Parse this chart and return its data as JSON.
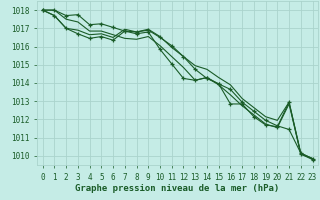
{
  "title": "Graphe pression niveau de la mer (hPa)",
  "x_hours": [
    0,
    1,
    2,
    3,
    4,
    5,
    6,
    7,
    8,
    9,
    10,
    11,
    12,
    13,
    14,
    15,
    16,
    17,
    18,
    19,
    20,
    21,
    22,
    23
  ],
  "line1": [
    1018.0,
    1018.0,
    1017.7,
    1017.75,
    1017.2,
    1017.25,
    1017.05,
    1016.85,
    1016.8,
    1016.9,
    1016.5,
    1016.05,
    1015.45,
    1014.75,
    1014.25,
    1013.95,
    1013.65,
    1012.95,
    1012.45,
    1011.95,
    1011.65,
    1011.45,
    1010.15,
    1009.85
  ],
  "line2": [
    1018.0,
    1017.7,
    1017.0,
    1016.9,
    1016.65,
    1016.7,
    1016.5,
    1016.95,
    1016.8,
    1016.95,
    1016.55,
    1015.95,
    1015.45,
    1014.95,
    1014.75,
    1014.3,
    1013.9,
    1013.15,
    1012.65,
    1012.15,
    1011.95,
    1012.95,
    1010.15,
    1009.85
  ],
  "line3": [
    1018.0,
    1017.7,
    1017.0,
    1016.7,
    1016.45,
    1016.55,
    1016.35,
    1016.85,
    1016.7,
    1016.8,
    1015.85,
    1015.05,
    1014.25,
    1014.15,
    1014.3,
    1013.95,
    1012.85,
    1012.85,
    1012.15,
    1011.7,
    1011.6,
    1012.95,
    1010.1,
    1009.8
  ],
  "line4": [
    1018.0,
    1018.0,
    1017.5,
    1017.35,
    1016.85,
    1016.85,
    1016.65,
    1016.45,
    1016.4,
    1016.55,
    1016.05,
    1015.45,
    1014.85,
    1014.15,
    1014.3,
    1013.9,
    1013.35,
    1012.75,
    1012.25,
    1011.75,
    1011.55,
    1012.85,
    1010.1,
    1009.85
  ],
  "ylim": [
    1009.5,
    1018.5
  ],
  "yticks": [
    1010,
    1011,
    1012,
    1013,
    1014,
    1015,
    1016,
    1017,
    1018
  ],
  "bg_color": "#c5ece6",
  "grid_color": "#aad4cc",
  "line_color": "#1a5c28",
  "line_width": 0.8,
  "title_color": "#1a5c28",
  "title_fontsize": 6.5,
  "tick_fontsize": 5.5,
  "tick_color": "#1a5c28",
  "marker": "+",
  "marker_size": 3,
  "marker_lw": 0.9
}
